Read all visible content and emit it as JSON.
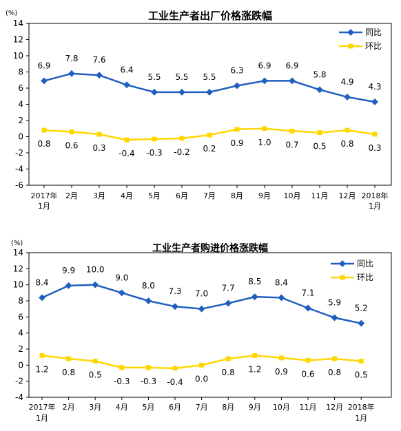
{
  "chart_data": [
    {
      "type": "line",
      "title": "工业生产者出厂价格涨跌幅",
      "unit": "(%)",
      "categories": [
        [
          "2017年",
          "1月"
        ],
        [
          "2月"
        ],
        [
          "3月"
        ],
        [
          "4月"
        ],
        [
          "5月"
        ],
        [
          "6月"
        ],
        [
          "7月"
        ],
        [
          "8月"
        ],
        [
          "9月"
        ],
        [
          "10月"
        ],
        [
          "11月"
        ],
        [
          "12月"
        ],
        [
          "2018年",
          "1月"
        ]
      ],
      "ylim": [
        -6,
        14
      ],
      "yticks": [
        -6,
        -4,
        -2,
        0,
        2,
        4,
        6,
        8,
        10,
        12,
        14
      ],
      "legend_position": "top-right",
      "grid": false,
      "series": [
        {
          "name": "同比",
          "color": "#1f5fbf",
          "values": [
            6.9,
            7.8,
            7.6,
            6.4,
            5.5,
            5.5,
            5.5,
            6.3,
            6.9,
            6.9,
            5.8,
            4.9,
            4.3
          ],
          "labels": [
            "6.9",
            "7.8",
            "7.6",
            "6.4",
            "5.5",
            "5.5",
            "5.5",
            "6.3",
            "6.9",
            "6.9",
            "5.8",
            "4.9",
            "4.3"
          ]
        },
        {
          "name": "环比",
          "color": "#ffd700",
          "values": [
            0.8,
            0.6,
            0.3,
            -0.4,
            -0.3,
            -0.2,
            0.2,
            0.9,
            1.0,
            0.7,
            0.5,
            0.8,
            0.3
          ],
          "labels": [
            "0.8",
            "0.6",
            "0.3",
            "-0.4",
            "-0.3",
            "-0.2",
            "0.2",
            "0.9",
            "1.0",
            "0.7",
            "0.5",
            "0.8",
            "0.3"
          ]
        }
      ]
    },
    {
      "type": "line",
      "title": "工业生产者购进价格涨跌幅",
      "unit": "(%)",
      "categories": [
        [
          "2017年",
          "1月"
        ],
        [
          "2月"
        ],
        [
          "3月"
        ],
        [
          "4月"
        ],
        [
          "5月"
        ],
        [
          "6月"
        ],
        [
          "7月"
        ],
        [
          "8月"
        ],
        [
          "9月"
        ],
        [
          "10月"
        ],
        [
          "11月"
        ],
        [
          "12月"
        ],
        [
          "2018年",
          "1月"
        ]
      ],
      "ylim": [
        -4,
        14
      ],
      "yticks": [
        -4,
        -2,
        0,
        2,
        4,
        6,
        8,
        10,
        12,
        14
      ],
      "legend_position": "top-right",
      "grid": false,
      "series": [
        {
          "name": "同比",
          "color": "#1f5fbf",
          "values": [
            8.4,
            9.9,
            10.0,
            9.0,
            8.0,
            7.3,
            7.0,
            7.7,
            8.5,
            8.4,
            7.1,
            5.9,
            5.2
          ],
          "labels": [
            "8.4",
            "9.9",
            "10.0",
            "9.0",
            "8.0",
            "7.3",
            "7.0",
            "7.7",
            "8.5",
            "8.4",
            "7.1",
            "5.9",
            "5.2"
          ]
        },
        {
          "name": "环比",
          "color": "#ffd700",
          "values": [
            1.2,
            0.8,
            0.5,
            -0.3,
            -0.3,
            -0.4,
            0.0,
            0.8,
            1.2,
            0.9,
            0.6,
            0.8,
            0.5
          ],
          "labels": [
            "1.2",
            "0.8",
            "0.5",
            "-0.3",
            "-0.3",
            "-0.4",
            "0.0",
            "0.8",
            "1.2",
            "0.9",
            "0.6",
            "0.8",
            "0.5"
          ]
        }
      ]
    }
  ]
}
